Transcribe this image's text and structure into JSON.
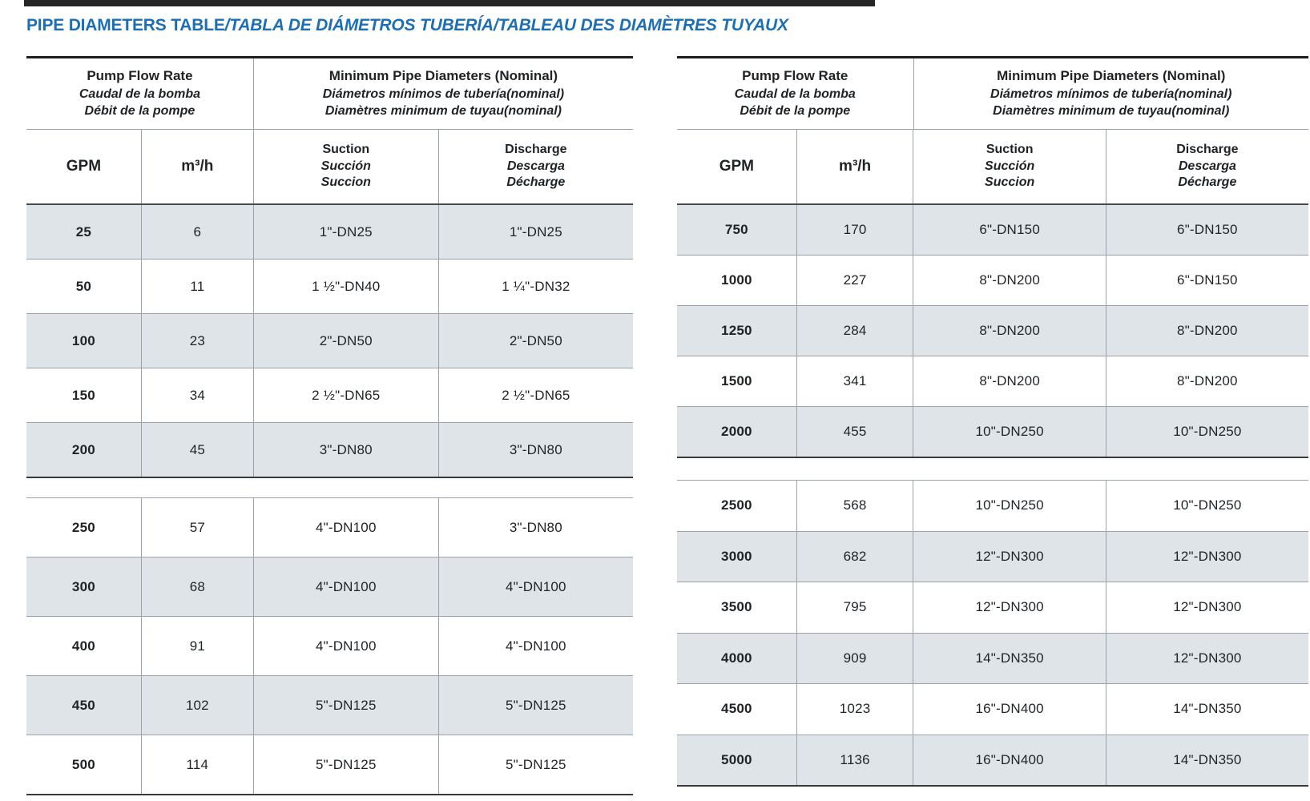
{
  "page": {
    "title_main": "PIPE DIAMETERS TABLE",
    "title_rest": "/TABLA DE DIÁMETROS TUBERÍA/TABLEAU DES DIAMÈTRES TUYAUX"
  },
  "colors": {
    "accent_blue": "#1c6fb5",
    "row_shade": "#dfe4e8",
    "grid_line": "#9aa3ab",
    "heavy_line": "#1f1f1f"
  },
  "header": {
    "flow_group": [
      "Pump Flow Rate",
      "Caudal de la bomba",
      "Débit de la pompe"
    ],
    "diameter_group": [
      "Minimum Pipe Diameters (Nominal)",
      "Diámetros mínimos de tubería(nominal)",
      "Diamètres minimum de tuyau(nominal)"
    ],
    "col_gpm": "GPM",
    "col_m3h": "m³/h",
    "col_suction": [
      "Suction",
      "Succión",
      "Succion"
    ],
    "col_discharge": [
      "Discharge",
      "Descarga",
      "Décharge"
    ]
  },
  "tables": [
    {
      "name": "low-flow-table",
      "sections": [
        {
          "rows": [
            [
              "25",
              "6",
              "1\"-DN25",
              "1\"-DN25"
            ],
            [
              "50",
              "11",
              "1 ½\"-DN40",
              "1 ¼\"-DN32"
            ],
            [
              "100",
              "23",
              "2\"-DN50",
              "2\"-DN50"
            ],
            [
              "150",
              "34",
              "2 ½\"-DN65",
              "2 ½\"-DN65"
            ],
            [
              "200",
              "45",
              "3\"-DN80",
              "3\"-DN80"
            ]
          ]
        },
        {
          "rows": [
            [
              "250",
              "57",
              "4\"-DN100",
              "3\"-DN80"
            ],
            [
              "300",
              "68",
              "4\"-DN100",
              "4\"-DN100"
            ],
            [
              "400",
              "91",
              "4\"-DN100",
              "4\"-DN100"
            ],
            [
              "450",
              "102",
              "5\"-DN125",
              "5\"-DN125"
            ],
            [
              "500",
              "114",
              "5\"-DN125",
              "5\"-DN125"
            ]
          ]
        }
      ]
    },
    {
      "name": "high-flow-table",
      "sections": [
        {
          "rows": [
            [
              "750",
              "170",
              "6\"-DN150",
              "6\"-DN150"
            ],
            [
              "1000",
              "227",
              "8\"-DN200",
              "6\"-DN150"
            ],
            [
              "1250",
              "284",
              "8\"-DN200",
              "8\"-DN200"
            ],
            [
              "1500",
              "341",
              "8\"-DN200",
              "8\"-DN200"
            ],
            [
              "2000",
              "455",
              "10\"-DN250",
              "10\"-DN250"
            ]
          ]
        },
        {
          "rows": [
            [
              "2500",
              "568",
              "10\"-DN250",
              "10\"-DN250"
            ],
            [
              "3000",
              "682",
              "12\"-DN300",
              "12\"-DN300"
            ],
            [
              "3500",
              "795",
              "12\"-DN300",
              "12\"-DN300"
            ],
            [
              "4000",
              "909",
              "14\"-DN350",
              "12\"-DN300"
            ],
            [
              "4500",
              "1023",
              "16\"-DN400",
              "14\"-DN350"
            ],
            [
              "5000",
              "1136",
              "16\"-DN400",
              "14\"-DN350"
            ]
          ]
        }
      ]
    }
  ]
}
